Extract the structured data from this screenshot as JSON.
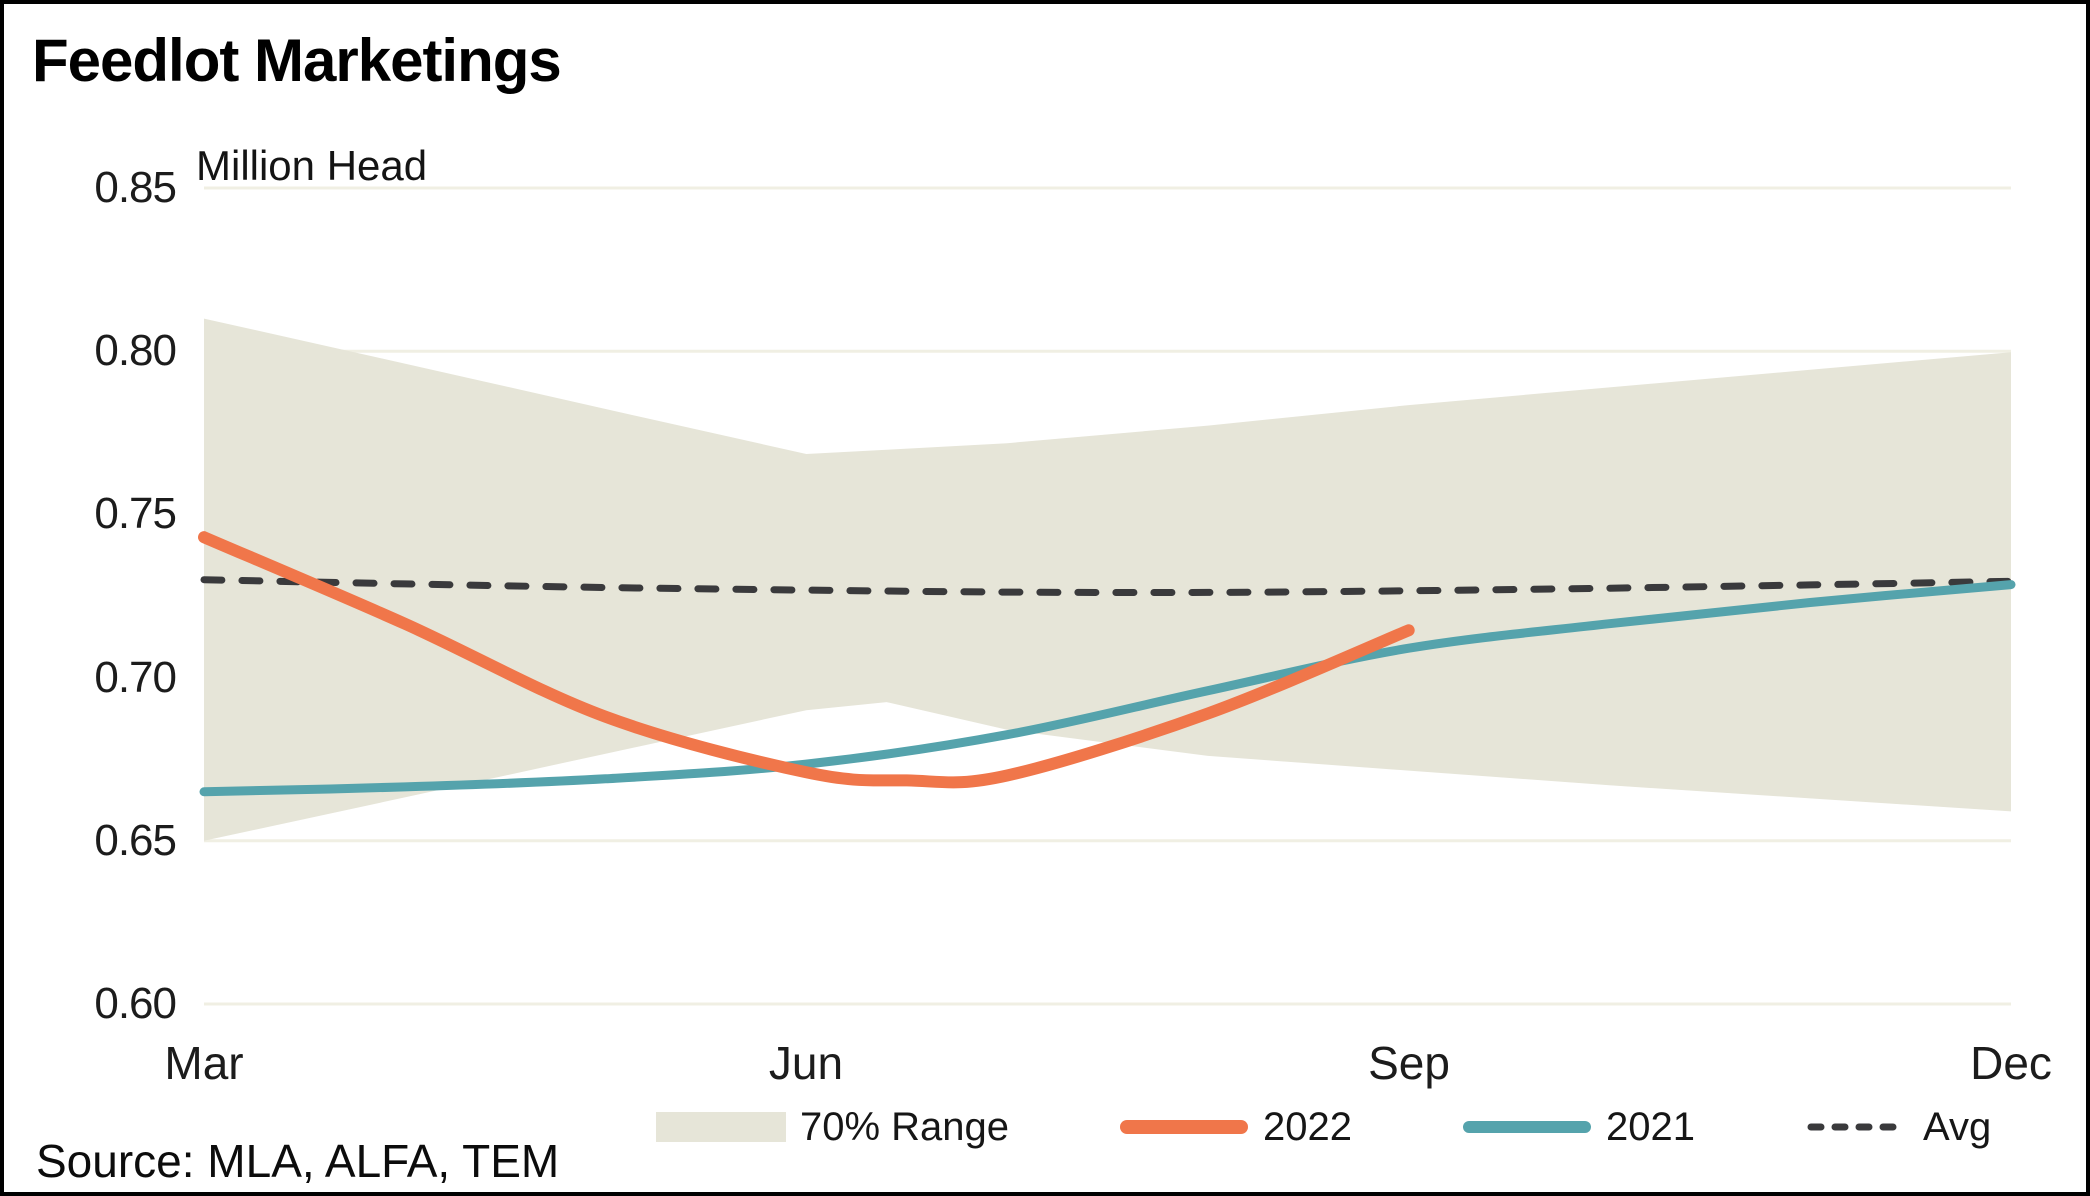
{
  "header": {
    "title": "Feedlot Marketings",
    "unit_label": "Million Head"
  },
  "footer": {
    "source": "Source: MLA, ALFA, TEM"
  },
  "legend": {
    "items": [
      {
        "label": "70% Range",
        "marker": "band-swatch"
      },
      {
        "label": "2022",
        "marker": "orange-line"
      },
      {
        "label": "2021",
        "marker": "teal-line"
      },
      {
        "label": "Avg",
        "marker": "dashed-line"
      }
    ]
  },
  "colors": {
    "range_band": "#E6E5D8",
    "s2022": "#F0764A",
    "s2021": "#55A3AC",
    "avg": "#3A3A3C",
    "gridline": "#F0EFE3",
    "text": "#1c1c1c",
    "border": "#000000",
    "background": "#FFFFFF"
  },
  "chart_data": {
    "type": "line",
    "title": "Feedlot Marketings",
    "ylabel": "Million Head",
    "x_axis": {
      "tick_labels": [
        "Mar",
        "Jun",
        "Sep",
        "Dec"
      ],
      "tick_months": [
        3,
        6,
        9,
        12
      ],
      "range_months": [
        3,
        12
      ]
    },
    "y_axis": {
      "min": 0.6,
      "max": 0.85,
      "ticks": [
        0.85,
        0.8,
        0.75,
        0.7,
        0.65,
        0.6
      ],
      "grid": true
    },
    "band": {
      "name": "70% Range",
      "months": [
        3,
        4,
        5,
        6,
        6.4,
        7,
        8,
        9,
        10,
        11,
        12
      ],
      "top": [
        0.81,
        0.7962,
        0.7823,
        0.7685,
        0.7698,
        0.7718,
        0.7772,
        0.7835,
        0.7889,
        0.7943,
        0.7997
      ],
      "bottom": [
        0.65,
        0.6633,
        0.6767,
        0.69,
        0.6925,
        0.684,
        0.676,
        0.6715,
        0.667,
        0.663,
        0.659
      ]
    },
    "series": [
      {
        "name": "2022",
        "style": "solid",
        "color_key": "s2022",
        "stroke_width": 12,
        "months": [
          3,
          4,
          5,
          6,
          6.5,
          7,
          8,
          9
        ],
        "values": [
          0.743,
          0.7165,
          0.688,
          0.671,
          0.6685,
          0.67,
          0.689,
          0.7145
        ]
      },
      {
        "name": "2021",
        "style": "solid",
        "color_key": "s2021",
        "stroke_width": 9,
        "months": [
          3,
          4,
          5,
          6,
          7,
          8,
          9,
          10,
          11,
          12
        ],
        "values": [
          0.665,
          0.6665,
          0.669,
          0.6735,
          0.6825,
          0.696,
          0.709,
          0.7165,
          0.723,
          0.7285
        ]
      },
      {
        "name": "Avg",
        "style": "dashed",
        "color_key": "avg",
        "stroke_width": 7,
        "months": [
          3,
          4,
          5,
          6,
          7,
          8,
          9,
          10,
          11,
          12
        ],
        "values": [
          0.73,
          0.7287,
          0.7276,
          0.7268,
          0.7262,
          0.7261,
          0.7266,
          0.7274,
          0.7284,
          0.7295
        ]
      }
    ],
    "legend_position": "bottom",
    "source": "Source: MLA, ALFA, TEM"
  }
}
